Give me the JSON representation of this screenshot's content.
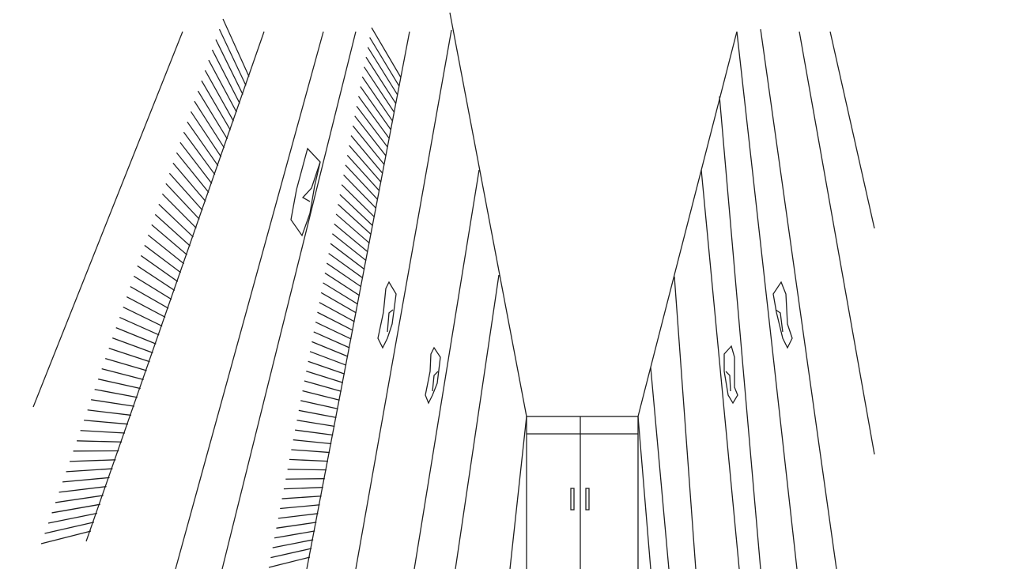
{
  "drawing": {
    "subject": "hallway-line-drawing",
    "colors": {
      "stroke": "#1a1a1a",
      "background": "#ffffff"
    }
  }
}
